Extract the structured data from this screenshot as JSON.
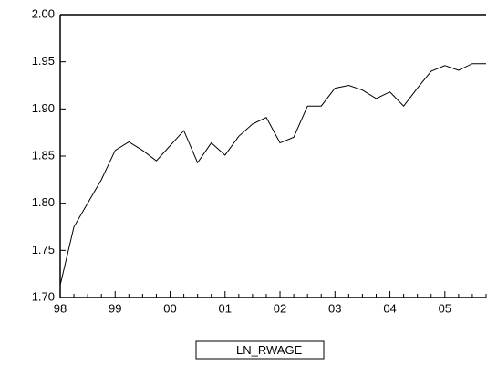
{
  "chart_data": {
    "type": "line",
    "categories": [
      "98",
      null,
      null,
      null,
      "99",
      null,
      null,
      null,
      "00",
      null,
      null,
      null,
      "01",
      null,
      null,
      null,
      "02",
      null,
      null,
      null,
      "03",
      null,
      null,
      null,
      "04",
      null,
      null,
      null,
      "05",
      null,
      null,
      null
    ],
    "series": [
      {
        "name": "LN_RWAGE",
        "color": "#000000",
        "values": [
          1.713,
          1.775,
          1.8,
          1.825,
          1.856,
          1.865,
          1.856,
          1.845,
          1.861,
          1.877,
          1.843,
          1.864,
          1.851,
          1.871,
          1.884,
          1.891,
          1.864,
          1.87,
          1.903,
          1.903,
          1.922,
          1.925,
          1.92,
          1.911,
          1.918,
          1.903,
          1.922,
          1.94,
          1.946,
          1.941,
          1.948,
          1.948
        ]
      }
    ],
    "ylim": [
      1.7,
      2.0
    ],
    "yticks": [
      {
        "value": 1.7,
        "label": "1.70"
      },
      {
        "value": 1.75,
        "label": "1.75"
      },
      {
        "value": 1.8,
        "label": "1.80"
      },
      {
        "value": 1.85,
        "label": "1.85"
      },
      {
        "value": 1.9,
        "label": "1.90"
      },
      {
        "value": 1.95,
        "label": "1.95"
      },
      {
        "value": 2.0,
        "label": "2.00"
      }
    ],
    "legend": "bottom"
  }
}
